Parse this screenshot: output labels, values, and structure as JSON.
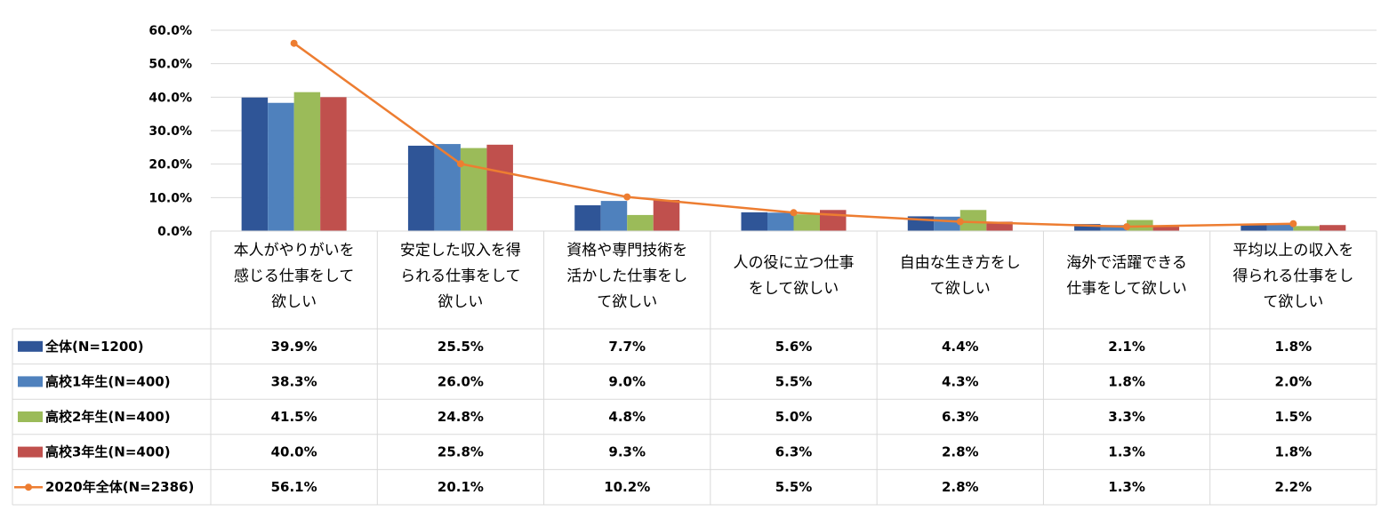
{
  "chart_data": {
    "type": "bar",
    "combined_with": "line",
    "has_data_table": true,
    "grid": true,
    "ylim": [
      0,
      60
    ],
    "y_ticks": [
      "0.0%",
      "10.0%",
      "20.0%",
      "30.0%",
      "40.0%",
      "50.0%",
      "60.0%"
    ],
    "categories": [
      "本人がやりがいを感じる仕事をして欲しい",
      "安定した収入を得られる仕事をして欲しい",
      "資格や専門技術を活かした仕事をして欲しい",
      "人の役に立つ仕事をして欲しい",
      "自由な生き方をして欲しい",
      "海外で活躍できる仕事をして欲しい",
      "平均以上の収入を得られる仕事をして欲しい"
    ],
    "category_lines": [
      [
        "本人がやりがいを",
        "感じる仕事をして",
        "欲しい"
      ],
      [
        "安定した収入を得",
        "られる仕事をして",
        "欲しい"
      ],
      [
        "資格や専門技術を",
        "活かした仕事をし",
        "て欲しい"
      ],
      [
        "人の役に立つ仕事",
        "をして欲しい"
      ],
      [
        "自由な生き方をし",
        "て欲しい"
      ],
      [
        "海外で活躍できる",
        "仕事をして欲しい"
      ],
      [
        "平均以上の収入を",
        "得られる仕事をし",
        "て欲しい"
      ]
    ],
    "series": [
      {
        "name": "全体(N=1200)",
        "kind": "bar",
        "color": "#2F5597",
        "values": [
          39.9,
          25.5,
          7.7,
          5.6,
          4.4,
          2.1,
          1.8
        ],
        "labels": [
          "39.9%",
          "25.5%",
          "7.7%",
          "5.6%",
          "4.4%",
          "2.1%",
          "1.8%"
        ]
      },
      {
        "name": "高校1年生(N=400)",
        "kind": "bar",
        "color": "#4F81BD",
        "values": [
          38.3,
          26.0,
          9.0,
          5.5,
          4.3,
          1.8,
          2.0
        ],
        "labels": [
          "38.3%",
          "26.0%",
          "9.0%",
          "5.5%",
          "4.3%",
          "1.8%",
          "2.0%"
        ]
      },
      {
        "name": "高校2年生(N=400)",
        "kind": "bar",
        "color": "#9BBB59",
        "values": [
          41.5,
          24.8,
          4.8,
          5.0,
          6.3,
          3.3,
          1.5
        ],
        "labels": [
          "41.5%",
          "24.8%",
          "4.8%",
          "5.0%",
          "6.3%",
          "3.3%",
          "1.5%"
        ]
      },
      {
        "name": "高校3年生(N=400)",
        "kind": "bar",
        "color": "#C0504D",
        "values": [
          40.0,
          25.8,
          9.3,
          6.3,
          2.8,
          1.3,
          1.8
        ],
        "labels": [
          "40.0%",
          "25.8%",
          "9.3%",
          "6.3%",
          "2.8%",
          "1.3%",
          "1.8%"
        ]
      },
      {
        "name": "2020年全体(N=2386)",
        "kind": "line",
        "color": "#ED7D31",
        "values": [
          56.1,
          20.1,
          10.2,
          5.5,
          2.8,
          1.3,
          2.2
        ],
        "labels": [
          "56.1%",
          "20.1%",
          "10.2%",
          "5.5%",
          "2.8%",
          "1.3%",
          "2.2%"
        ]
      }
    ]
  }
}
